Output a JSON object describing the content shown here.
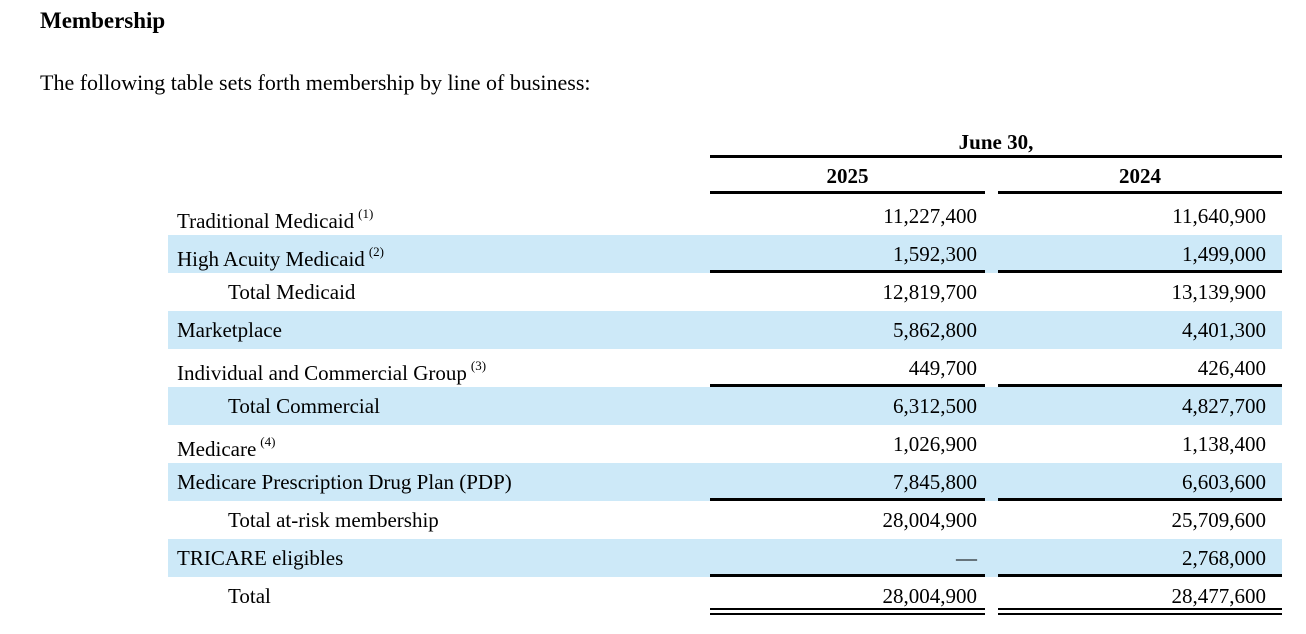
{
  "document": {
    "heading": "Membership",
    "intro": "The following table sets forth membership by line of business:"
  },
  "table": {
    "date_header": "June 30,",
    "year_columns": [
      "2025",
      "2024"
    ],
    "rows": [
      {
        "label": "Traditional Medicaid",
        "footnote": "(1)",
        "indent": false,
        "highlight": false,
        "rule_below": false,
        "double_rule_below": false,
        "values": [
          "11,227,400",
          "11,640,900"
        ]
      },
      {
        "label": "High Acuity Medicaid",
        "footnote": "(2)",
        "indent": false,
        "highlight": true,
        "rule_below": true,
        "double_rule_below": false,
        "values": [
          "1,592,300",
          "1,499,000"
        ]
      },
      {
        "label": "Total Medicaid",
        "footnote": "",
        "indent": true,
        "highlight": false,
        "rule_below": false,
        "double_rule_below": false,
        "values": [
          "12,819,700",
          "13,139,900"
        ]
      },
      {
        "label": "Marketplace",
        "footnote": "",
        "indent": false,
        "highlight": true,
        "rule_below": false,
        "double_rule_below": false,
        "values": [
          "5,862,800",
          "4,401,300"
        ]
      },
      {
        "label": "Individual and Commercial Group",
        "footnote": "(3)",
        "indent": false,
        "highlight": false,
        "rule_below": true,
        "double_rule_below": false,
        "values": [
          "449,700",
          "426,400"
        ]
      },
      {
        "label": "Total Commercial",
        "footnote": "",
        "indent": true,
        "highlight": true,
        "rule_below": false,
        "double_rule_below": false,
        "values": [
          "6,312,500",
          "4,827,700"
        ]
      },
      {
        "label": "Medicare",
        "footnote": "(4)",
        "indent": false,
        "highlight": false,
        "rule_below": false,
        "double_rule_below": false,
        "values": [
          "1,026,900",
          "1,138,400"
        ]
      },
      {
        "label": "Medicare Prescription Drug Plan (PDP)",
        "footnote": "",
        "indent": false,
        "highlight": true,
        "rule_below": true,
        "double_rule_below": false,
        "values": [
          "7,845,800",
          "6,603,600"
        ]
      },
      {
        "label": "Total at-risk membership",
        "footnote": "",
        "indent": true,
        "highlight": false,
        "rule_below": false,
        "double_rule_below": false,
        "values": [
          "28,004,900",
          "25,709,600"
        ]
      },
      {
        "label": "TRICARE eligibles",
        "footnote": "",
        "indent": false,
        "highlight": true,
        "rule_below": true,
        "double_rule_below": false,
        "values": [
          "—",
          "2,768,000"
        ]
      },
      {
        "label": "Total",
        "footnote": "",
        "indent": true,
        "highlight": false,
        "rule_below": false,
        "double_rule_below": true,
        "values": [
          "28,004,900",
          "28,477,600"
        ]
      }
    ],
    "colors": {
      "highlight": "#cde9f8",
      "text": "#000000",
      "rule": "#000000"
    }
  }
}
